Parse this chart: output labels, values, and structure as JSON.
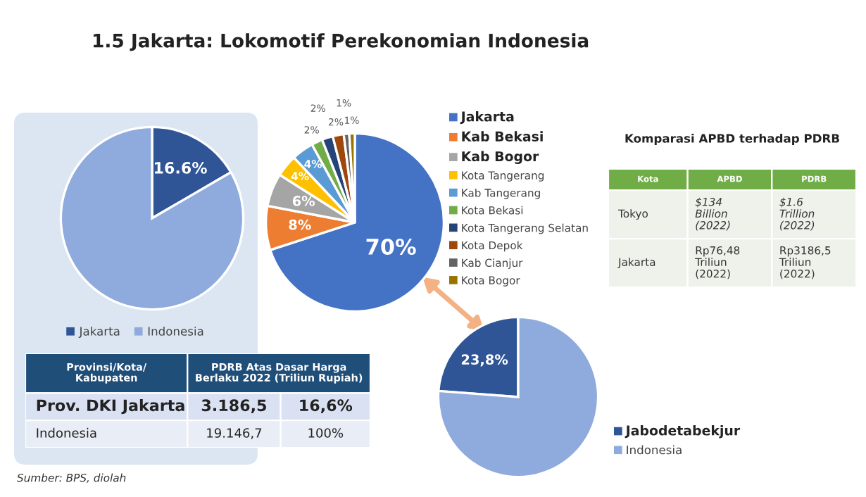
{
  "chart_data": [
    {
      "type": "other",
      "title": "1.5 Jakarta: Lokomotif Perekonomian Indonesia",
      "annotations": [
        "Sumber: BPS, diolah"
      ]
    },
    {
      "type": "pie",
      "categories": [
        "Jakarta",
        "Indonesia"
      ],
      "values": [
        16.6,
        83.4
      ],
      "colors": [
        "#2f5597",
        "#8faadc"
      ],
      "value_labels": [
        "16.6%",
        null
      ],
      "legend": "bottom"
    },
    {
      "type": "other",
      "categories": [
        "Provinsi/Kota/\nKabupaten",
        "PDRB Atas Dasar Harga\nBerlaku 2022 (Triliun Rupiah)"
      ],
      "y_categories": [
        "Prov. DKI Jakarta",
        "Indonesia"
      ],
      "cell_labels": [
        [
          "3.186,5",
          "16,6%"
        ],
        [
          "19.146,7",
          "100%"
        ]
      ]
    },
    {
      "type": "pie",
      "categories": [
        "Jakarta",
        "Kab Bekasi",
        "Kab Bogor",
        "Kota Tangerang",
        "Kab Tangerang",
        "Kota Bekasi",
        "Kota Tangerang Selatan",
        "Kota Depok",
        "Kab Cianjur",
        "Kota Bogor"
      ],
      "values": [
        70,
        8,
        6,
        4,
        4,
        2,
        2,
        2,
        1,
        1
      ],
      "colors": [
        "#4472c4",
        "#ed7d31",
        "#a5a5a5",
        "#ffc000",
        "#5b9bd5",
        "#70ad47",
        "#264478",
        "#9e480e",
        "#636363",
        "#997300"
      ],
      "value_labels": [
        "70%",
        "8%",
        "6%",
        "4%",
        "4%",
        "2%",
        "2%",
        "2%",
        "1%",
        "1%"
      ],
      "legend": "right"
    },
    {
      "type": "other",
      "title": "Komparasi APBD terhadap PDRB",
      "categories": [
        "Kota",
        "APBD",
        "PDRB"
      ],
      "y_categories": [
        "Tokyo",
        "Jakarta"
      ],
      "cell_labels": [
        [
          "$134\nBillion\n(2022)",
          "$1.6\nTrillion\n(2022)"
        ],
        [
          "Rp76,48\nTriliun\n(2022)",
          "Rp3186,5\nTriliun\n(2022)"
        ]
      ]
    },
    {
      "type": "pie",
      "categories": [
        "Jabodetabekjur",
        "Indonesia"
      ],
      "values": [
        23.8,
        76.2
      ],
      "colors": [
        "#2f5597",
        "#8faadc"
      ],
      "value_labels": [
        "23,8%",
        null
      ],
      "legend": "right"
    }
  ]
}
